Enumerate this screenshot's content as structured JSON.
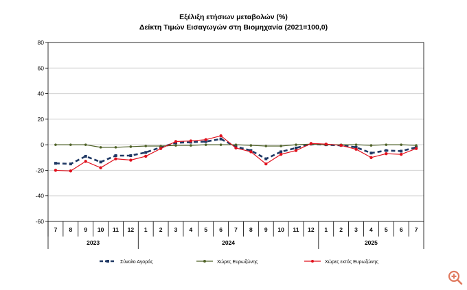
{
  "chart_data": {
    "type": "line",
    "title": "Εξέλιξη ετήσιων μεταβολών (%)",
    "subtitle": "Δείκτη Τιμών Εισαγωγών στη Βιομηχανία (2021=100,0)",
    "categories": [
      "7",
      "8",
      "9",
      "10",
      "11",
      "12",
      "1",
      "2",
      "3",
      "4",
      "5",
      "6",
      "7",
      "8",
      "9",
      "10",
      "11",
      "12",
      "1",
      "2",
      "3",
      "4",
      "5",
      "6",
      "7"
    ],
    "year_groups": [
      {
        "label": "2023",
        "start": 0,
        "end": 5
      },
      {
        "label": "2024",
        "start": 6,
        "end": 17
      },
      {
        "label": "2025",
        "start": 18,
        "end": 24
      }
    ],
    "ylim": [
      -60,
      80
    ],
    "yticks": [
      80,
      60,
      40,
      20,
      0,
      -20,
      -40,
      -60
    ],
    "grid": true,
    "legend_position": "bottom",
    "series": [
      {
        "name": "Σύνολο Αγοράς",
        "color": "#1f3864",
        "style": "dashed",
        "values": [
          -14.5,
          -15,
          -9,
          -13.5,
          -8.5,
          -8.5,
          -6,
          -2,
          1.5,
          2,
          2.5,
          4.5,
          -1.5,
          -4.5,
          -11,
          -5.5,
          -2.5,
          0.5,
          0,
          -0.5,
          -2,
          -6.5,
          -4.5,
          -5,
          -2
        ]
      },
      {
        "name": "Χώρες Ευρωζώνης",
        "color": "#4f6228",
        "style": "solid",
        "values": [
          0,
          0,
          0,
          -2,
          -2,
          -1.5,
          -1,
          -1,
          -0.5,
          -0.5,
          0,
          0,
          0,
          -0.5,
          -1,
          -1,
          0,
          0.5,
          0,
          0,
          0,
          -0.5,
          0,
          0,
          -0.5
        ]
      },
      {
        "name": "Χώρες εκτός Ευρωζώνης",
        "color": "#e0101c",
        "style": "solid",
        "values": [
          -20,
          -20.5,
          -13,
          -18,
          -11,
          -12,
          -9,
          -3,
          2.5,
          3,
          4,
          7,
          -2.5,
          -5.5,
          -15,
          -7.5,
          -4.5,
          1,
          0.5,
          -0.5,
          -3.5,
          -10,
          -7,
          -7.5,
          -3
        ]
      }
    ]
  },
  "zoom": {
    "icon": "zoom-in-icon",
    "color": "#e07a5f"
  }
}
